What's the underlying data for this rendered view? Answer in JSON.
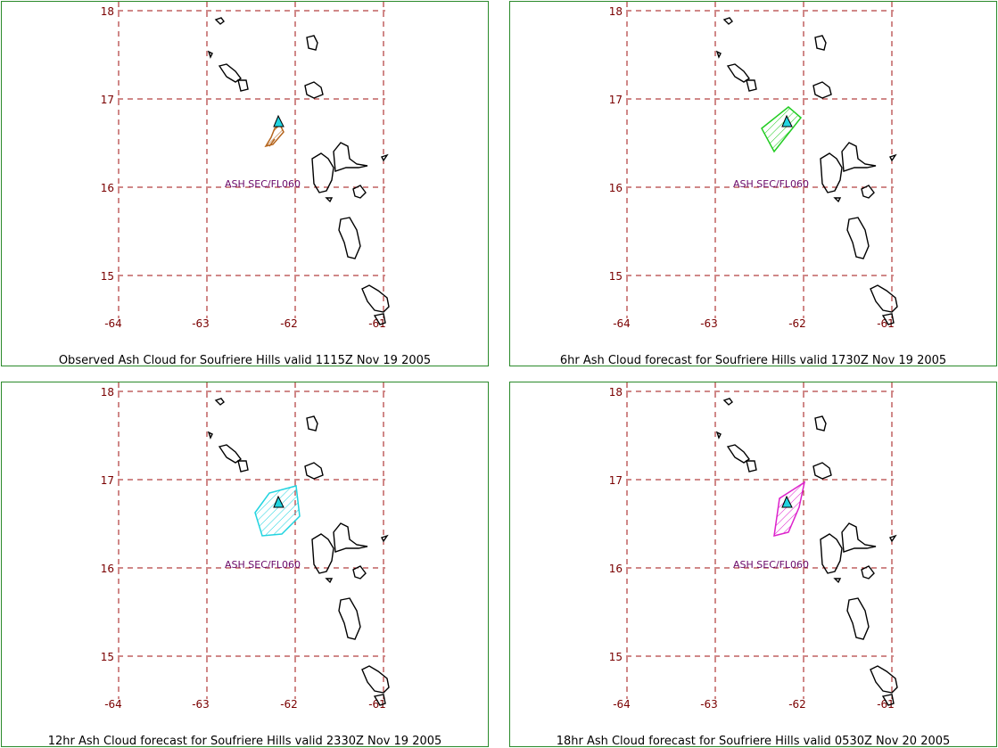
{
  "map": {
    "lat_ticks": [
      "18",
      "17",
      "16",
      "15"
    ],
    "lon_ticks": [
      "-64",
      "-63",
      "-62",
      "-61"
    ],
    "volcano_icon": "volcano-triangle-icon",
    "ash_label": "ASH SEC/FL060"
  },
  "panels": [
    {
      "caption": "Observed Ash Cloud for Soufriere  Hills valid 1115Z Nov 19 2005",
      "cloud_color": "#b5651d",
      "type": "observed"
    },
    {
      "caption": "6hr Ash Cloud forecast for Soufriere  Hills valid 1730Z Nov 19 2005",
      "cloud_color": "#22cc22",
      "type": "forecast-6"
    },
    {
      "caption": "12hr Ash Cloud forecast for Soufriere  Hills valid 2330Z Nov 19 2005",
      "cloud_color": "#22d4e0",
      "type": "forecast-12"
    },
    {
      "caption": "18hr Ash Cloud forecast for Soufriere  Hills valid 0530Z Nov 20 2005",
      "cloud_color": "#dd22cc",
      "type": "forecast-18"
    }
  ],
  "colors": {
    "border": "#2a8a2a",
    "grid": "#a01010",
    "tick_text": "#7a0000",
    "label": "#6a0a6a",
    "volcano": "#22d4e0"
  }
}
